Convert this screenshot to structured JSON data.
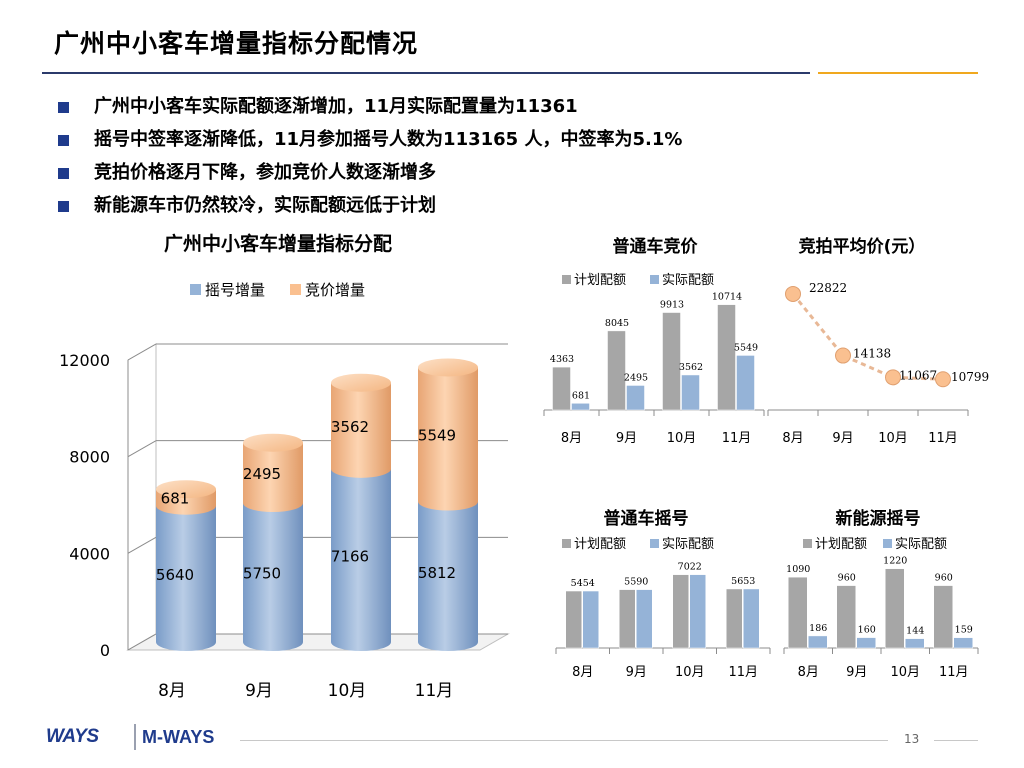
{
  "slide": {
    "title": "广州中小客车增量指标分配情况",
    "bullets": [
      "广州中小客车实际配额逐渐增加，11月实际配置量为11361",
      "摇号中签率逐渐降低，11月参加摇号人数为113165 人，中签率为5.1%",
      "竞拍价格逐月下降，参加竞价人数逐渐增多",
      "新能源车市仍然较冷，实际配额远低于计划"
    ],
    "footer": {
      "logo_left": "WAYS",
      "logo_right": "M-WAYS",
      "page_number": "13"
    }
  },
  "colors": {
    "blue_series": "#95b3d7",
    "orange_series": "#fac090",
    "gray_series": "#a6a6a6",
    "line_marker": "#fac090",
    "accent_blue": "#1f3b8c",
    "accent_gold": "#f0a81e"
  },
  "chart_data": [
    {
      "id": "quota-allocation",
      "type": "bar",
      "stacked": true,
      "title": "广州中小客车增量指标分配",
      "categories": [
        "8月",
        "9月",
        "10月",
        "11月"
      ],
      "series": [
        {
          "name": "摇号增量",
          "values": [
            5640,
            5750,
            7166,
            5812
          ]
        },
        {
          "name": "竞价增量",
          "values": [
            681,
            2495,
            3562,
            5549
          ]
        }
      ],
      "ylim": [
        0,
        12000
      ],
      "yticks": [
        "0",
        "4000",
        "8000",
        "12000"
      ],
      "legend": "top",
      "grid": true
    },
    {
      "id": "regular-auction",
      "type": "bar",
      "title": "普通车竞价",
      "categories": [
        "8月",
        "9月",
        "10月",
        "11月"
      ],
      "series": [
        {
          "name": "计划配额",
          "values": [
            4363,
            8045,
            9913,
            10714
          ]
        },
        {
          "name": "实际配额",
          "values": [
            681,
            2495,
            3562,
            5549
          ]
        }
      ],
      "ylim": [
        0,
        12000
      ],
      "legend": "top"
    },
    {
      "id": "avg-auction-price",
      "type": "line",
      "title": "竞拍平均价(元）",
      "categories": [
        "8月",
        "9月",
        "10月",
        "11月"
      ],
      "values": [
        22822,
        14138,
        11067,
        10799
      ],
      "ylim": [
        0,
        30000
      ]
    },
    {
      "id": "regular-lottery",
      "type": "bar",
      "title": "普通车摇号",
      "categories": [
        "8月",
        "9月",
        "10月",
        "11月"
      ],
      "series": [
        {
          "name": "计划配额",
          "values": [
            5454,
            5590,
            7022,
            5653
          ]
        },
        {
          "name": "实际配额",
          "values": [
            5454,
            5590,
            7022,
            5653
          ]
        }
      ],
      "ylim": [
        0,
        9000
      ],
      "legend": "top"
    },
    {
      "id": "nev-lottery",
      "type": "bar",
      "title": "新能源摇号",
      "categories": [
        "8月",
        "9月",
        "10月",
        "11月"
      ],
      "series": [
        {
          "name": "计划配额",
          "values": [
            1090,
            960,
            1220,
            960
          ]
        },
        {
          "name": "实际配额",
          "values": [
            186,
            160,
            144,
            159
          ]
        }
      ],
      "ylim": [
        0,
        1600
      ],
      "legend": "top"
    }
  ]
}
